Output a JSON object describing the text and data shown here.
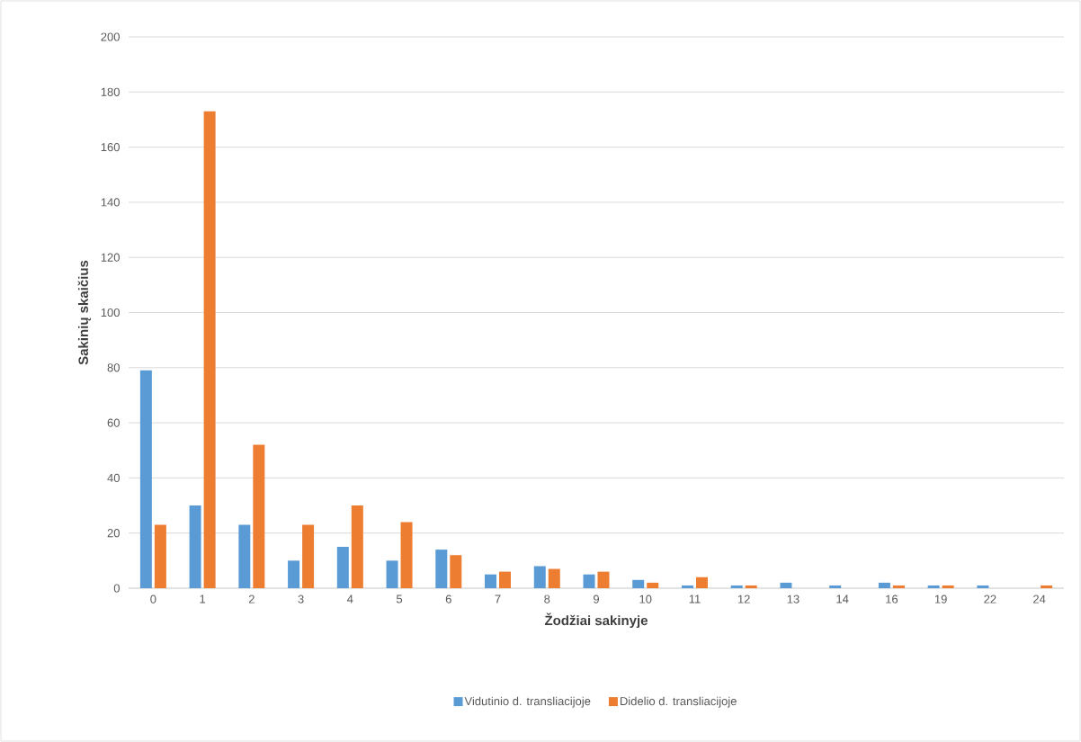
{
  "chart_data": {
    "type": "bar",
    "xlabel": "Žodžiai sakinyje",
    "ylabel": "Sakinių skaičius",
    "categories": [
      "0",
      "1",
      "2",
      "3",
      "4",
      "5",
      "6",
      "7",
      "8",
      "9",
      "10",
      "11",
      "12",
      "13",
      "14",
      "16",
      "19",
      "22",
      "24"
    ],
    "series": [
      {
        "name": "Vidutinio d. transliacijoje",
        "color": "#5b9bd5",
        "values": [
          79,
          30,
          23,
          10,
          15,
          10,
          14,
          5,
          8,
          5,
          3,
          1,
          1,
          2,
          1,
          2,
          1,
          1,
          0
        ]
      },
      {
        "name": "Didelio d. transliacijoje",
        "color": "#ed7d31",
        "values": [
          23,
          173,
          52,
          23,
          30,
          24,
          12,
          6,
          7,
          6,
          2,
          4,
          1,
          0,
          0,
          1,
          1,
          0,
          1
        ]
      }
    ],
    "ylim": [
      0,
      200
    ],
    "yticks": [
      0,
      20,
      40,
      60,
      80,
      100,
      120,
      140,
      160,
      180,
      200
    ],
    "grid": "y",
    "legend": "bottom"
  }
}
